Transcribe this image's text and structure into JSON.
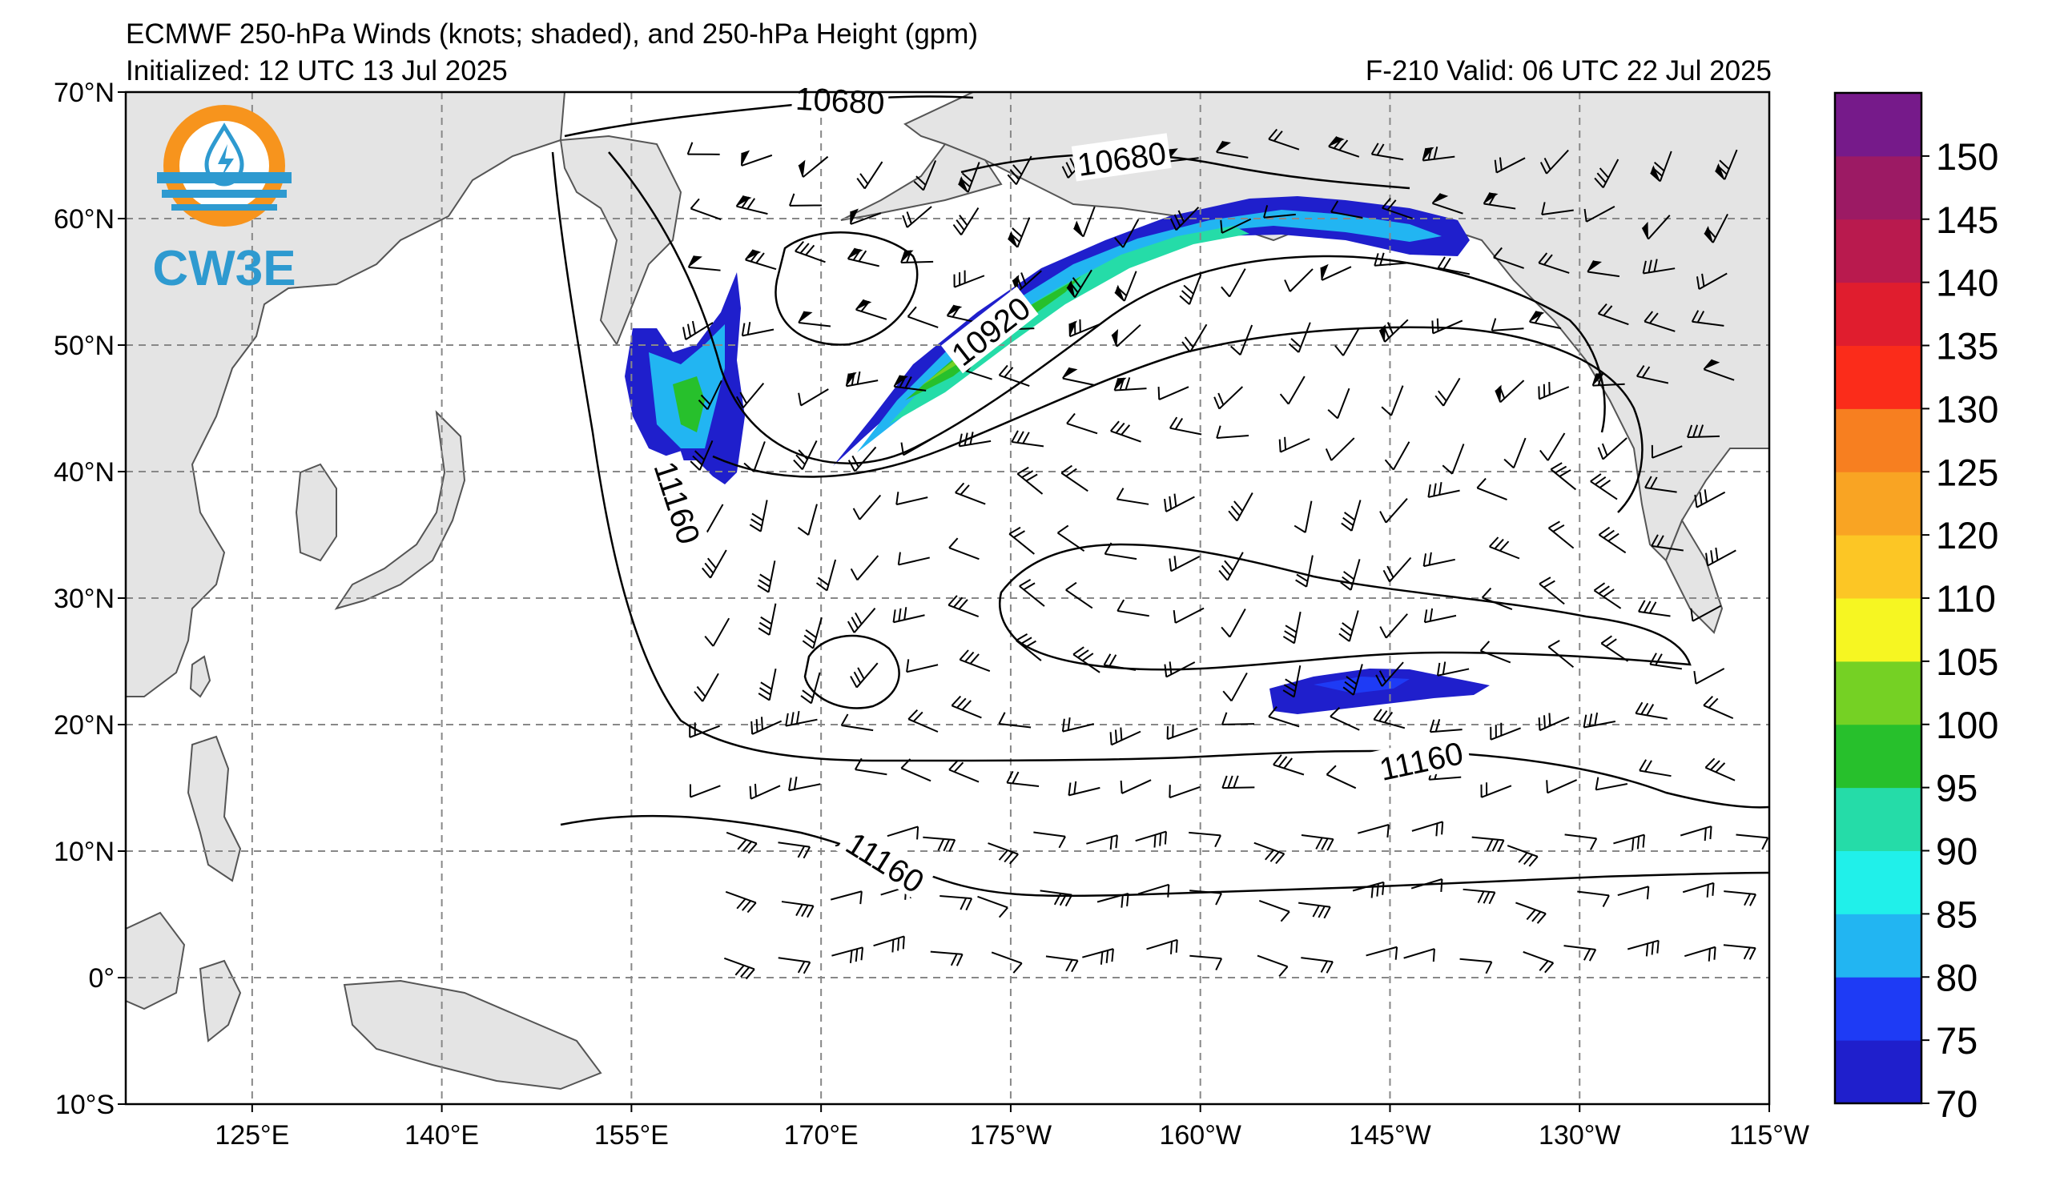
{
  "header": {
    "title": "ECMWF 250-hPa Winds (knots; shaded), and 250-hPa Height (gpm)",
    "initialized": "Initialized: 12 UTC 13 Jul 2025",
    "valid": "F-210  Valid: 06 UTC 22 Jul 2025"
  },
  "logo": {
    "text": "CW3E",
    "ring_color": "#f7941d",
    "wave_color": "#2e9ad0",
    "icon": "water-drop-lightning-icon"
  },
  "map": {
    "projection": "cylindrical equidistant",
    "lon_range": [
      115,
      245
    ],
    "lat_range": [
      -10,
      70
    ],
    "grid": "dashed",
    "land_color": "#e4e4e4",
    "ocean_color": "#ffffff"
  },
  "axes": {
    "y_ticks": [
      {
        "value": 70,
        "label": "70°N"
      },
      {
        "value": 60,
        "label": "60°N"
      },
      {
        "value": 50,
        "label": "50°N"
      },
      {
        "value": 40,
        "label": "40°N"
      },
      {
        "value": 30,
        "label": "30°N"
      },
      {
        "value": 20,
        "label": "20°N"
      },
      {
        "value": 10,
        "label": "10°N"
      },
      {
        "value": 0,
        "label": "0°"
      },
      {
        "value": -10,
        "label": "10°S"
      }
    ],
    "x_ticks": [
      {
        "value": 125,
        "label": "125°E"
      },
      {
        "value": 140,
        "label": "140°E"
      },
      {
        "value": 155,
        "label": "155°E"
      },
      {
        "value": 170,
        "label": "170°E"
      },
      {
        "value": 185,
        "label": "175°W"
      },
      {
        "value": 200,
        "label": "160°W"
      },
      {
        "value": 215,
        "label": "145°W"
      },
      {
        "value": 230,
        "label": "130°W"
      },
      {
        "value": 245,
        "label": "115°W"
      }
    ]
  },
  "contour_labels": [
    {
      "text": "10680",
      "lon": 171.5,
      "lat": 69.2,
      "angle": 3
    },
    {
      "text": "10680",
      "lon": 193.8,
      "lat": 64.6,
      "angle": -8
    },
    {
      "text": "10920",
      "lon": 183.5,
      "lat": 51.0,
      "angle": -38
    },
    {
      "text": "11160",
      "lon": 158.5,
      "lat": 37.5,
      "angle": 72
    },
    {
      "text": "11160",
      "lon": 217.5,
      "lat": 17.0,
      "angle": -12
    },
    {
      "text": "11160",
      "lon": 175.0,
      "lat": 9.0,
      "angle": 32
    }
  ],
  "colorbar": {
    "units": "knots",
    "levels": [
      {
        "label": "70",
        "color": "#1f1fcc"
      },
      {
        "label": "75",
        "color": "#1e3bf5"
      },
      {
        "label": "80",
        "color": "#22b5f2"
      },
      {
        "label": "85",
        "color": "#20f0ea"
      },
      {
        "label": "90",
        "color": "#25dca8"
      },
      {
        "label": "95",
        "color": "#27c02c"
      },
      {
        "label": "100",
        "color": "#75d124"
      },
      {
        "label": "105",
        "color": "#f6f622"
      },
      {
        "label": "110",
        "color": "#fcc625"
      },
      {
        "label": "120",
        "color": "#f9a423"
      },
      {
        "label": "125",
        "color": "#f77f20"
      },
      {
        "label": "130",
        "color": "#fb2c1a"
      },
      {
        "label": "135",
        "color": "#e01d2e"
      },
      {
        "label": "140",
        "color": "#b91a4e"
      },
      {
        "label": "145",
        "color": "#9c1a64"
      },
      {
        "label": "150",
        "color": "#761a8a"
      }
    ],
    "label_order_bottom_to_top": [
      "70",
      "75",
      "80",
      "85",
      "90",
      "95",
      "100",
      "105",
      "110",
      "120",
      "125",
      "130",
      "135",
      "140",
      "145",
      "150"
    ]
  }
}
